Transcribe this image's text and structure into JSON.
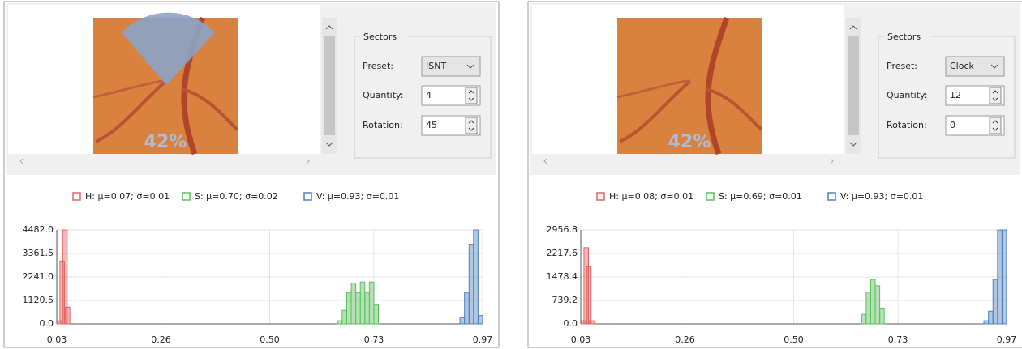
{
  "panels": [
    {
      "image_label": "42%",
      "sectors": {
        "title": "Sectors",
        "preset_label": "Preset:",
        "preset": "ISNT",
        "quantity_label": "Quantity:",
        "quantity": "4",
        "rotation_label": "Rotation:",
        "rotation": "45"
      },
      "chart": {
        "type": "histogram",
        "xlim": [
          0.03,
          0.97
        ],
        "xticks": [
          0.03,
          0.26,
          {
            "value": 0.5,
            "label": "0.50"
          },
          0.73,
          0.97
        ],
        "ylim": [
          0,
          4482.0
        ],
        "yticks": [
          {
            "value": 0,
            "label": "0.0"
          },
          1120.5,
          {
            "value": 2241.0,
            "label": "2241.0"
          },
          3361.5,
          {
            "value": 4482.0,
            "label": "4482.0"
          }
        ],
        "grid": true,
        "series": [
          {
            "name": "H: μ=0.07; σ=0.01",
            "color": "#e06666",
            "x": [
              0.036,
              0.042,
              0.048,
              0.054
            ],
            "values": [
              150,
              3000,
              4482,
              800
            ]
          },
          {
            "name": "S: μ=0.70; σ=0.02",
            "color": "#5cbf5c",
            "x": [
              0.655,
              0.665,
              0.675,
              0.685,
              0.695,
              0.705,
              0.715,
              0.725,
              0.735
            ],
            "values": [
              150,
              650,
              1500,
              1950,
              1500,
              2000,
              1500,
              2000,
              900
            ]
          },
          {
            "name": "V: μ=0.93; σ=0.01",
            "color": "#4f81bd",
            "x": [
              0.925,
              0.935,
              0.945,
              0.955,
              0.965
            ],
            "values": [
              300,
              1500,
              3800,
              4482,
              400
            ]
          }
        ]
      }
    },
    {
      "image_label": "42%",
      "sectors": {
        "title": "Sectors",
        "preset_label": "Preset:",
        "preset": "Clock",
        "quantity_label": "Quantity:",
        "quantity": "12",
        "rotation_label": "Rotation:",
        "rotation": "0"
      },
      "chart": {
        "type": "histogram",
        "xlim": [
          0.03,
          0.97
        ],
        "xticks": [
          0.03,
          0.26,
          {
            "value": 0.5,
            "label": "0.50"
          },
          0.73,
          0.97
        ],
        "ylim": [
          0,
          2956.8
        ],
        "yticks": [
          {
            "value": 0,
            "label": "0.0"
          },
          739.2,
          1478.4,
          2217.6,
          2956.8
        ],
        "grid": true,
        "series": [
          {
            "name": "H: μ=0.08; σ=0.01",
            "color": "#e06666",
            "x": [
              0.036,
              0.042,
              0.048,
              0.054
            ],
            "values": [
              100,
              2400,
              1800,
              100
            ]
          },
          {
            "name": "S: μ=0.69; σ=0.01",
            "color": "#5cbf5c",
            "x": [
              0.655,
              0.665,
              0.675,
              0.685,
              0.695
            ],
            "values": [
              300,
              1000,
              1400,
              1200,
              500
            ]
          },
          {
            "name": "V: μ=0.93; σ=0.01",
            "color": "#4f81bd",
            "x": [
              0.925,
              0.935,
              0.945,
              0.955,
              0.965
            ],
            "values": [
              100,
              400,
              1400,
              2956.8,
              2956.8
            ]
          }
        ]
      }
    }
  ]
}
